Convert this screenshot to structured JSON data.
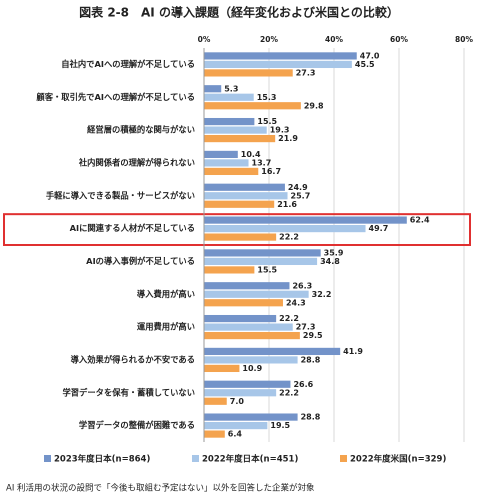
{
  "chart_data": {
    "type": "bar",
    "orientation": "horizontal",
    "title": "図表 2-8　AI の導入課題（経年変化および米国との比較）",
    "footnote": "AI 利活用の状況の設問で「今後も取組む予定はない」以外を回答した企業が対象",
    "categories": [
      "自社内でAIへの理解が不足している",
      "顧客・取引先でAIへの理解が不足している",
      "経営層の積極的な関与がない",
      "社内関係者の理解が得られない",
      "手軽に導入できる製品・サービスがない",
      "AIに関連する人材が不足している",
      "AIの導入事例が不足している",
      "導入費用が高い",
      "運用費用が高い",
      "導入効果が得られるか不安である",
      "学習データを保有・蓄積していない",
      "学習データの整備が困難である"
    ],
    "series": [
      {
        "name": "2023年度日本(n=864)",
        "color": "#7393c9",
        "values": [
          47.0,
          5.3,
          15.5,
          10.4,
          24.9,
          62.4,
          35.9,
          26.3,
          22.2,
          41.9,
          26.6,
          28.8
        ],
        "value_labels": [
          "47.0",
          "5.3",
          "15.5",
          "10.4",
          "24.9",
          "62.4",
          "35.9",
          "26.3",
          "22.2",
          "41.9",
          "26.6",
          "28.8"
        ]
      },
      {
        "name": "2022年度日本(n=451)",
        "color": "#a7c6e8",
        "values": [
          45.5,
          15.3,
          19.3,
          13.7,
          25.7,
          49.7,
          34.8,
          32.2,
          27.3,
          28.8,
          22.2,
          19.5
        ],
        "value_labels": [
          "45.5",
          "15.3",
          "19.3",
          "13.7",
          "25.7",
          "49.7",
          "34.8",
          "32.2",
          "27.3",
          "28.8",
          "22.2",
          "19.5"
        ]
      },
      {
        "name": "2022年度米国(n=329)",
        "color": "#f4a34e",
        "values": [
          27.3,
          29.8,
          21.9,
          16.7,
          21.6,
          22.2,
          15.5,
          24.3,
          29.5,
          10.9,
          7.0,
          6.4
        ],
        "value_labels": [
          "27.3",
          "29.8",
          "21.9",
          "16.7",
          "21.6",
          "22.2",
          "15.5",
          "24.3",
          "29.5",
          "10.9",
          "7.0",
          "6.4"
        ]
      }
    ],
    "xlim": [
      0,
      80
    ],
    "xticks": [
      {
        "value": 0,
        "label": "0%"
      },
      {
        "value": 20,
        "label": "20%"
      },
      {
        "value": 40,
        "label": "40%"
      },
      {
        "value": 60,
        "label": "60%"
      },
      {
        "value": 80,
        "label": "80%"
      }
    ],
    "grid": true
  }
}
